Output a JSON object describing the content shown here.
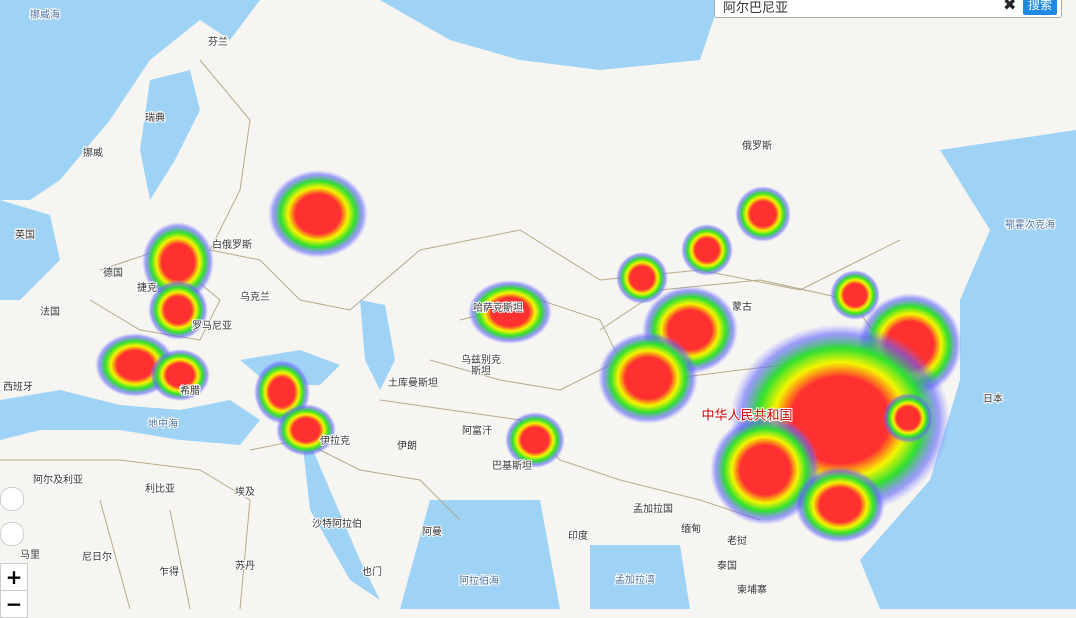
{
  "search": {
    "query": "阿尔巴尼亚",
    "button": "搜索"
  },
  "zoom": {
    "in": "+",
    "out": "−"
  },
  "labels": [
    "挪威海",
    "芬兰",
    "瑞典",
    "挪威",
    "俄罗斯",
    "英国",
    "白俄罗斯",
    "德国",
    "捷克",
    "乌克兰",
    "法国",
    "罗马尼亚",
    "哈萨克斯坦",
    "蒙古",
    "鄂霍次克海",
    "乌兹别克",
    "斯坦",
    "土库曼斯坦",
    "西班牙",
    "希腊",
    "地中海",
    "阿富汗",
    "伊拉克",
    "伊朗",
    "中华人民共和国",
    "日本",
    "巴基斯坦",
    "阿尔及利亚",
    "利比亚",
    "埃及",
    "孟加拉国",
    "沙特阿拉伯",
    "阿曼",
    "缅甸",
    "印度",
    "老挝",
    "马里",
    "尼日尔",
    "乍得",
    "苏丹",
    "泰国",
    "也门",
    "阿拉伯海",
    "孟加拉湾",
    "柬埔寨"
  ]
}
